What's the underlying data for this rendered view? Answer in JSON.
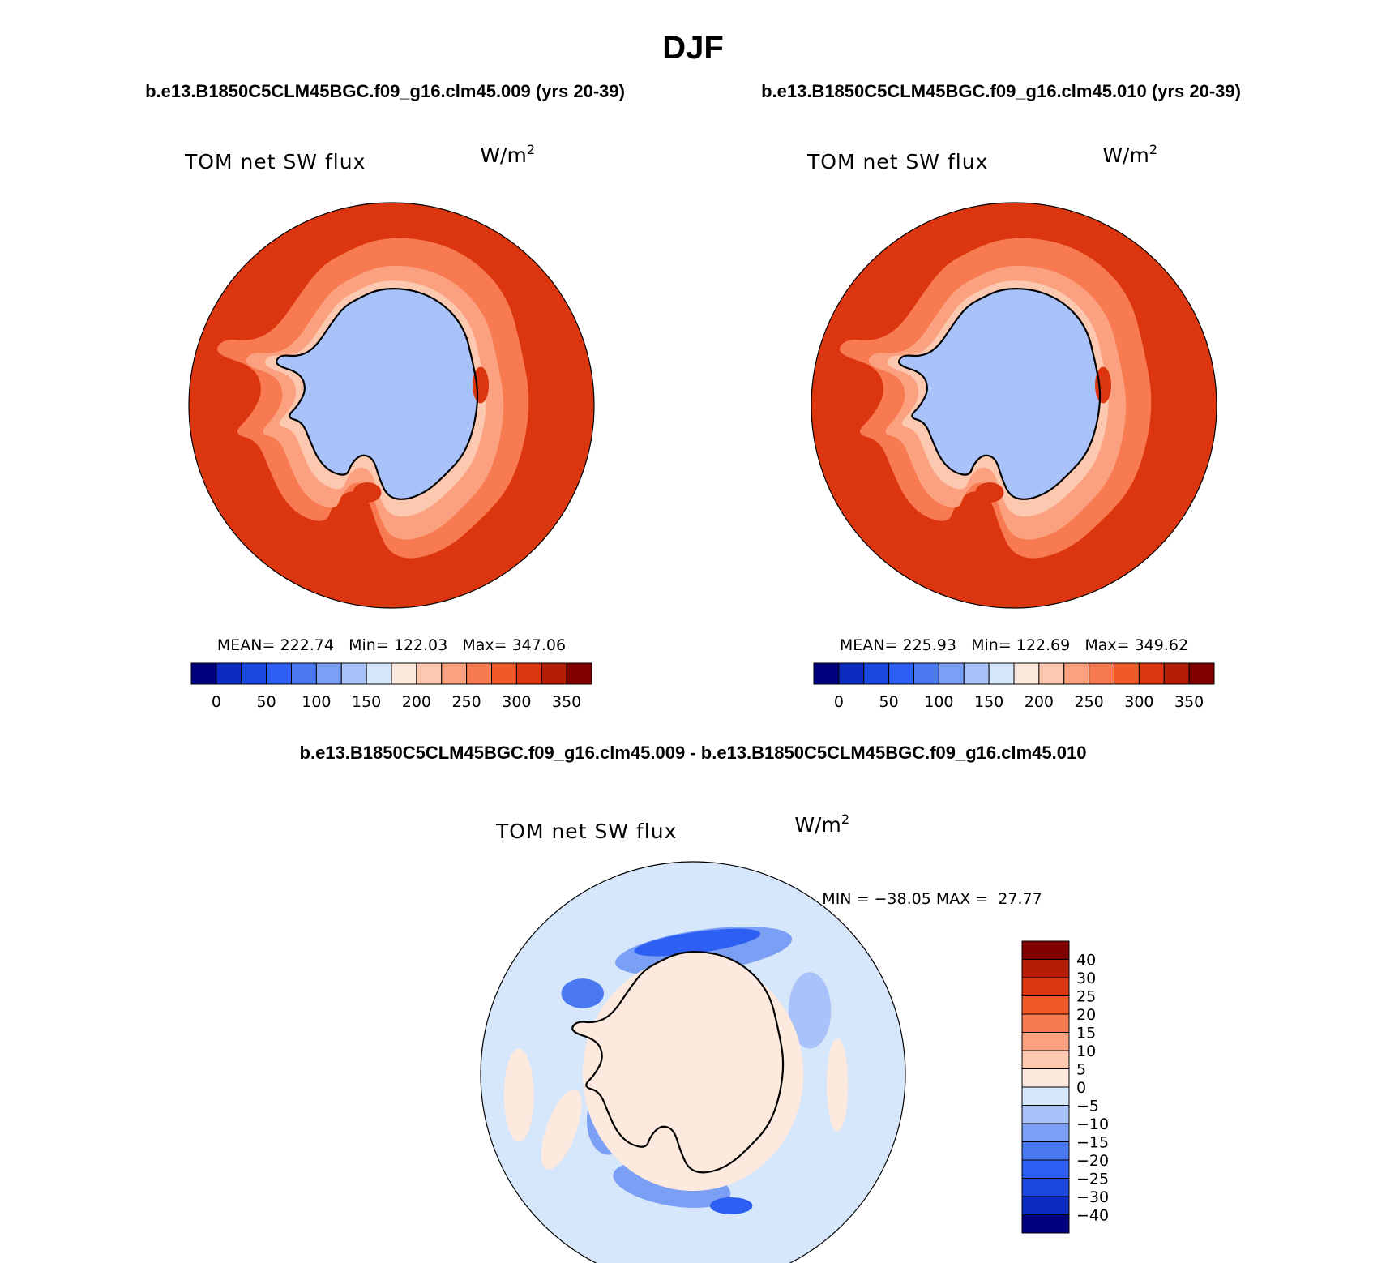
{
  "figure": {
    "season": "DJF",
    "case1_title": "b.e13.B1850C5CLM45BGC.f09_g16.clm45.009 (yrs 20-39)",
    "case2_title": "b.e13.B1850C5CLM45BGC.f09_g16.clm45.010 (yrs 20-39)",
    "diff_title": "b.e13.B1850C5CLM45BGC.f09_g16.clm45.009 - b.e13.B1850C5CLM45BGC.f09_g16.clm45.010"
  },
  "chart_data": [
    {
      "type": "heatmap",
      "projection": "south-polar-stereographic",
      "title": "TOM net SW flux",
      "units": "W/m",
      "units_exponent": "2",
      "stats_text": "MEAN= 222.74   Min= 122.03   Max= 347.06",
      "mean": 222.74,
      "min": 122.03,
      "max": 347.06,
      "colorbar": {
        "orientation": "horizontal",
        "levels": [
          0,
          25,
          50,
          75,
          100,
          125,
          150,
          175,
          200,
          225,
          250,
          275,
          300,
          325,
          350
        ],
        "tick_labels": [
          "0",
          "50",
          "100",
          "150",
          "200",
          "250",
          "300",
          "350"
        ],
        "colors": [
          "#00007f",
          "#0a2ac2",
          "#1a47de",
          "#2d5ff2",
          "#4a78f0",
          "#7b9ff5",
          "#a9c2fa",
          "#d6e6fb",
          "#fde9dd",
          "#fcc9b0",
          "#fba17f",
          "#f87a50",
          "#f05a2a",
          "#dc3610",
          "#b41e05",
          "#800000"
        ]
      },
      "rings": [
        {
          "band": "outer",
          "value": 300
        },
        {
          "band": "mid",
          "value": 260
        },
        {
          "band": "inner",
          "value": 235
        },
        {
          "band": "ice-edge",
          "value": 205
        },
        {
          "band": "continent",
          "value": 140
        }
      ]
    },
    {
      "type": "heatmap",
      "projection": "south-polar-stereographic",
      "title": "TOM net SW flux",
      "units": "W/m",
      "units_exponent": "2",
      "stats_text": "MEAN= 225.93   Min= 122.69   Max= 349.62",
      "mean": 225.93,
      "min": 122.69,
      "max": 349.62,
      "colorbar": {
        "orientation": "horizontal",
        "levels": [
          0,
          25,
          50,
          75,
          100,
          125,
          150,
          175,
          200,
          225,
          250,
          275,
          300,
          325,
          350
        ],
        "tick_labels": [
          "0",
          "50",
          "100",
          "150",
          "200",
          "250",
          "300",
          "350"
        ],
        "colors": [
          "#00007f",
          "#0a2ac2",
          "#1a47de",
          "#2d5ff2",
          "#4a78f0",
          "#7b9ff5",
          "#a9c2fa",
          "#d6e6fb",
          "#fde9dd",
          "#fcc9b0",
          "#fba17f",
          "#f87a50",
          "#f05a2a",
          "#dc3610",
          "#b41e05",
          "#800000"
        ]
      },
      "rings": [
        {
          "band": "outer",
          "value": 300
        },
        {
          "band": "mid",
          "value": 270
        },
        {
          "band": "inner",
          "value": 240
        },
        {
          "band": "ice-edge",
          "value": 210
        },
        {
          "band": "continent",
          "value": 140
        }
      ]
    },
    {
      "type": "heatmap",
      "projection": "south-polar-stereographic",
      "title": "TOM net SW flux",
      "units": "W/m",
      "units_exponent": "2",
      "stats_text": "MIN = −38.05 MAX =  27.77",
      "min": -38.05,
      "max": 27.77,
      "colorbar": {
        "orientation": "vertical",
        "levels": [
          -40,
          -30,
          -25,
          -20,
          -15,
          -10,
          -5,
          0,
          5,
          10,
          15,
          20,
          25,
          30,
          40
        ],
        "tick_labels": [
          "40",
          "30",
          "25",
          "20",
          "15",
          "10",
          "5",
          "0",
          "−5",
          "−10",
          "−15",
          "−20",
          "−25",
          "−30",
          "−40"
        ],
        "colors": [
          "#00007f",
          "#0a2ac2",
          "#1a47de",
          "#2d5ff2",
          "#4a78f0",
          "#7b9ff5",
          "#a9c2fa",
          "#d6e6fb",
          "#fde9dd",
          "#fcc9b0",
          "#fba17f",
          "#f87a50",
          "#f05a2a",
          "#dc3610",
          "#b41e05",
          "#800000"
        ]
      },
      "rings": [
        {
          "band": "background",
          "value": -2
        },
        {
          "band": "continent",
          "value": 2
        }
      ]
    }
  ]
}
